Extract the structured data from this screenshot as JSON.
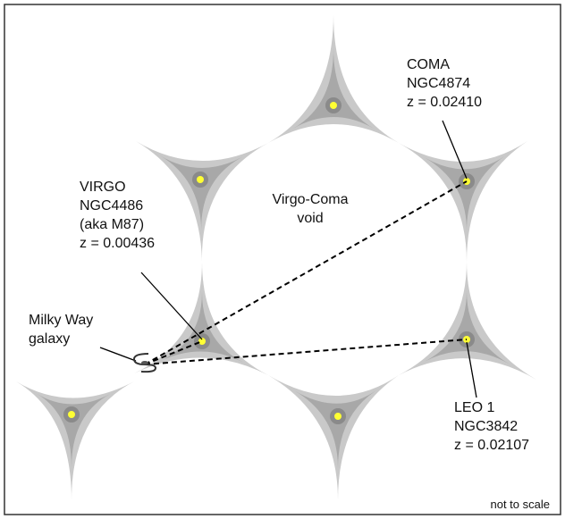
{
  "diagram": {
    "void_label": [
      "Virgo-Coma",
      "void"
    ],
    "clusters": [
      {
        "id": "virgo",
        "lines": [
          "VIRGO",
          "NGC4486",
          "(aka M87)",
          "z = 0.00436"
        ]
      },
      {
        "id": "coma",
        "lines": [
          "COMA",
          "NGC4874",
          "z = 0.02410"
        ]
      },
      {
        "id": "leo1",
        "lines": [
          "LEO 1",
          "NGC3842",
          "z = 0.02107"
        ]
      }
    ],
    "observer_label": [
      "Milky Way",
      "galaxy"
    ],
    "scale_note": "not to scale",
    "colors": {
      "outer_filament": "#c9c9c9",
      "inner_filament": "#a8a8a8",
      "node_ring": "#8a8a8a",
      "galaxy_dot": "#ffff33",
      "border": "#333333"
    }
  }
}
